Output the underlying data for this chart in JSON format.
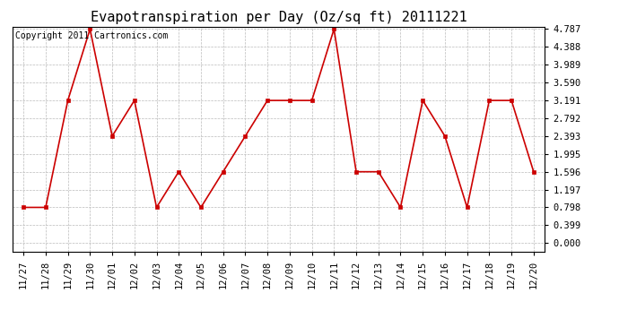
{
  "title": "Evapotranspiration per Day (Oz/sq ft) 20111221",
  "copyright": "Copyright 2011 Cartronics.com",
  "x_labels": [
    "11/27",
    "11/28",
    "11/29",
    "11/30",
    "12/01",
    "12/02",
    "12/03",
    "12/04",
    "12/05",
    "12/06",
    "12/07",
    "12/08",
    "12/09",
    "12/10",
    "12/11",
    "12/12",
    "12/13",
    "12/14",
    "12/15",
    "12/16",
    "12/17",
    "12/18",
    "12/19",
    "12/20"
  ],
  "y_values": [
    0.798,
    0.798,
    3.191,
    4.787,
    2.393,
    3.191,
    0.798,
    1.596,
    0.798,
    1.596,
    2.393,
    3.191,
    3.191,
    3.191,
    4.787,
    1.596,
    1.596,
    0.798,
    3.191,
    2.393,
    0.798,
    3.191,
    3.191,
    1.596
  ],
  "y_ticks": [
    0.0,
    0.399,
    0.798,
    1.197,
    1.596,
    1.995,
    2.393,
    2.792,
    3.191,
    3.59,
    3.989,
    4.388,
    4.787
  ],
  "ylim_min": 0.0,
  "ylim_max": 4.787,
  "line_color": "#cc0000",
  "marker": "s",
  "marker_size": 3,
  "grid_color": "#bbbbbb",
  "bg_color": "#ffffff",
  "title_fontsize": 11,
  "copyright_fontsize": 7,
  "tick_fontsize": 7.5,
  "fig_width": 6.9,
  "fig_height": 3.75
}
